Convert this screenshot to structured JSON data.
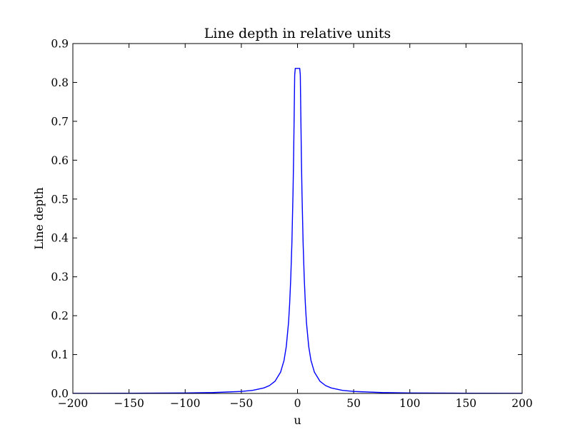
{
  "chart_data": {
    "type": "line",
    "title": "Line depth in relative units",
    "xlabel": "u",
    "ylabel": "Line depth",
    "xlim": [
      -200,
      200
    ],
    "ylim": [
      0.0,
      0.9
    ],
    "xticks": [
      "−200",
      "−150",
      "−100",
      "−50",
      "0",
      "50",
      "100",
      "150",
      "200"
    ],
    "xtick_values": [
      -200,
      -150,
      -100,
      -50,
      0,
      50,
      100,
      150,
      200
    ],
    "yticks": [
      "0.0",
      "0.1",
      "0.2",
      "0.3",
      "0.4",
      "0.5",
      "0.6",
      "0.7",
      "0.8",
      "0.9"
    ],
    "ytick_values": [
      0.0,
      0.1,
      0.2,
      0.3,
      0.4,
      0.5,
      0.6,
      0.7,
      0.8,
      0.9
    ],
    "grid": false,
    "series": [
      {
        "color": "#0000ff",
        "x": [
          -200,
          -150,
          -100,
          -75,
          -50,
          -40,
          -30,
          -25,
          -20,
          -15,
          -12,
          -10,
          -8,
          -7,
          -6,
          -5,
          -4,
          -3.5,
          -3,
          -2.5,
          -2,
          -1.5,
          -1,
          0,
          1,
          1.5,
          2,
          2.5,
          3,
          3.5,
          4,
          5,
          6,
          7,
          8,
          10,
          12,
          15,
          20,
          25,
          30,
          40,
          50,
          75,
          100,
          150,
          200
        ],
        "y": [
          0.0003,
          0.0006,
          0.0013,
          0.0023,
          0.0051,
          0.008,
          0.0141,
          0.0202,
          0.0314,
          0.0552,
          0.0849,
          0.1203,
          0.1814,
          0.23,
          0.2968,
          0.3861,
          0.5146,
          0.6005,
          0.7066,
          0.8186,
          0.836,
          0.836,
          0.836,
          0.836,
          0.836,
          0.836,
          0.836,
          0.8186,
          0.7066,
          0.6005,
          0.5146,
          0.3861,
          0.2968,
          0.23,
          0.1814,
          0.1203,
          0.0849,
          0.0552,
          0.0314,
          0.0202,
          0.0141,
          0.008,
          0.0051,
          0.0023,
          0.0013,
          0.0006,
          0.0003
        ]
      }
    ]
  }
}
